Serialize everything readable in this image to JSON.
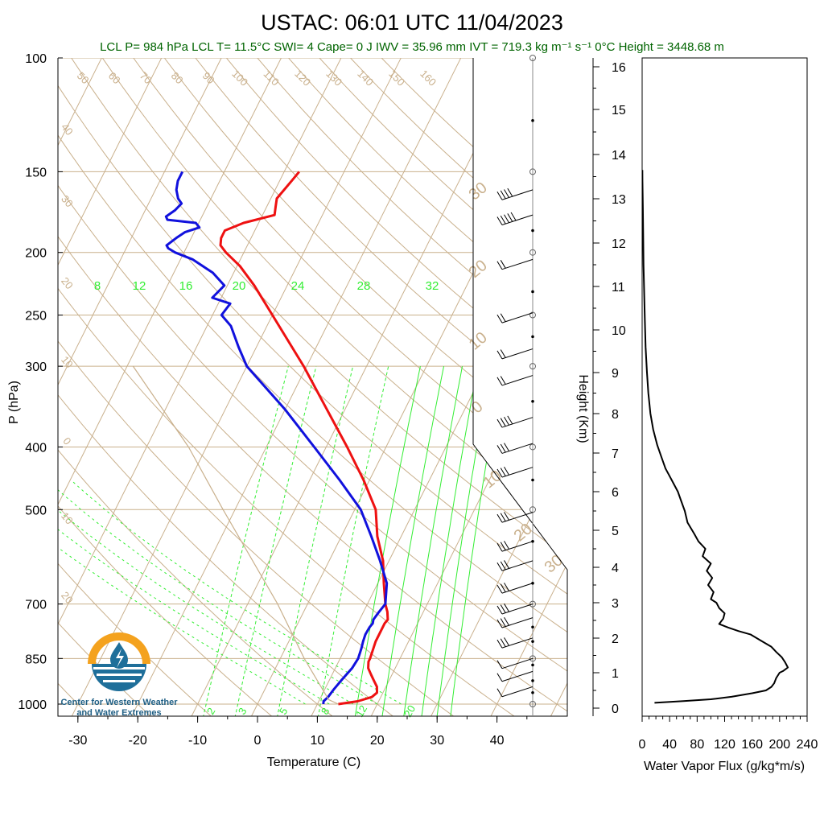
{
  "header": {
    "title": "USTAC: 06:01 UTC 11/04/2023",
    "stats": "LCL P= 984 hPa  LCL T= 11.5°C  SWI= 4  Cape= 0 J  IWV = 35.96 mm  IVT = 719.3 kg m⁻¹ s⁻¹  0°C Height = 3448.68 m"
  },
  "logo": {
    "line1": "Center for Western Weather",
    "line2": "and Water Extremes"
  },
  "colors": {
    "temperature": "#ee1111",
    "dewpoint": "#1111dd",
    "isotherm": "#c9b08c",
    "mixing_ratio": "#33ee33",
    "stats_text": "#006400",
    "logo_orange": "#f4a21e",
    "logo_blue": "#1f6f9a"
  },
  "chart_data": [
    {
      "type": "line",
      "subtype": "skew-t log-p sounding",
      "xlabel": "Temperature (C)",
      "ylabel": "P (hPa)",
      "x_ticks": [
        -30,
        -20,
        -10,
        0,
        10,
        20,
        30,
        40
      ],
      "y_ticks": [
        100,
        150,
        200,
        250,
        300,
        400,
        500,
        700,
        850,
        1000
      ],
      "ylim": [
        1000,
        100
      ],
      "y_scale": "log",
      "isotherm_labels": [
        {
          "t": 50,
          "label": "50"
        },
        {
          "t": 60,
          "label": "60"
        },
        {
          "t": 70,
          "label": "70"
        },
        {
          "t": 80,
          "label": "80"
        },
        {
          "t": 90,
          "label": "90"
        },
        {
          "t": 100,
          "label": "100"
        },
        {
          "t": 110,
          "label": "110"
        },
        {
          "t": 120,
          "label": "120"
        },
        {
          "t": 130,
          "label": "130"
        },
        {
          "t": 140,
          "label": "140"
        },
        {
          "t": 150,
          "label": "150"
        },
        {
          "t": 160,
          "label": "160"
        }
      ],
      "left_edge_labels": [
        {
          "p": 130,
          "label": "40"
        },
        {
          "p": 168,
          "label": "30"
        },
        {
          "p": 225,
          "label": "20"
        },
        {
          "p": 298,
          "label": "10"
        },
        {
          "p": 395,
          "label": "0"
        },
        {
          "p": 520,
          "label": "10"
        },
        {
          "p": 690,
          "label": "20"
        }
      ],
      "right_labels": [
        {
          "p": 163,
          "label": "30"
        },
        {
          "p": 215,
          "label": "20"
        },
        {
          "p": 278,
          "label": "10"
        },
        {
          "p": 352,
          "label": "0"
        },
        {
          "p": 455,
          "label": "10"
        },
        {
          "p": 550,
          "label": "20"
        },
        {
          "p": 615,
          "label": "30"
        }
      ],
      "mixing_ratio_upper": [
        "8",
        "12",
        "16",
        "20",
        "24",
        "28",
        "32"
      ],
      "mixing_ratio_lower": [
        "2",
        "3",
        "5",
        "8",
        "12",
        "20"
      ],
      "series": [
        {
          "name": "Temperature",
          "points": [
            [
              1000,
              13.5
            ],
            [
              990,
              16.5
            ],
            [
              975,
              18.5
            ],
            [
              960,
              19.0
            ],
            [
              940,
              18.5
            ],
            [
              920,
              17.5
            ],
            [
              900,
              16.5
            ],
            [
              880,
              15.5
            ],
            [
              860,
              15.0
            ],
            [
              850,
              15.0
            ],
            [
              800,
              14.5
            ],
            [
              750,
              14.5
            ],
            [
              740,
              14.7
            ],
            [
              720,
              14.0
            ],
            [
              700,
              13.0
            ],
            [
              650,
              11.0
            ],
            [
              600,
              9.0
            ],
            [
              550,
              6.0
            ],
            [
              500,
              3.5
            ],
            [
              450,
              -1.0
            ],
            [
              400,
              -6.5
            ],
            [
              350,
              -13.0
            ],
            [
              300,
              -20.5
            ],
            [
              250,
              -30.0
            ],
            [
              225,
              -35.5
            ],
            [
              210,
              -39.5
            ],
            [
              200,
              -43.0
            ],
            [
              195,
              -44.5
            ],
            [
              190,
              -45.0
            ],
            [
              185,
              -45.0
            ],
            [
              180,
              -42.5
            ],
            [
              175,
              -38.0
            ],
            [
              170,
              -38.5
            ],
            [
              165,
              -39.0
            ],
            [
              160,
              -38.5
            ],
            [
              155,
              -38.0
            ],
            [
              150,
              -37.5
            ]
          ]
        },
        {
          "name": "Dewpoint",
          "points": [
            [
              1000,
              11.0
            ],
            [
              990,
              10.8
            ],
            [
              975,
              11.2
            ],
            [
              950,
              11.5
            ],
            [
              920,
              12.0
            ],
            [
              880,
              12.8
            ],
            [
              850,
              13.0
            ],
            [
              820,
              12.7
            ],
            [
              800,
              12.4
            ],
            [
              780,
              12.2
            ],
            [
              760,
              12.3
            ],
            [
              750,
              12.5
            ],
            [
              740,
              12.3
            ],
            [
              720,
              12.6
            ],
            [
              700,
              13.0
            ],
            [
              650,
              11.5
            ],
            [
              600,
              8.5
            ],
            [
              550,
              5.0
            ],
            [
              500,
              1.0
            ],
            [
              450,
              -5.0
            ],
            [
              400,
              -12.0
            ],
            [
              350,
              -20.0
            ],
            [
              300,
              -30.0
            ],
            [
              280,
              -33.0
            ],
            [
              260,
              -36.0
            ],
            [
              250,
              -38.5
            ],
            [
              240,
              -38.0
            ],
            [
              235,
              -41.5
            ],
            [
              225,
              -40.5
            ],
            [
              215,
              -43.5
            ],
            [
              205,
              -48.0
            ],
            [
              200,
              -51.5
            ],
            [
              197,
              -53.0
            ],
            [
              195,
              -53.5
            ],
            [
              190,
              -52.5
            ],
            [
              186,
              -51.5
            ],
            [
              183,
              -49.5
            ],
            [
              180,
              -50.5
            ],
            [
              178,
              -55.5
            ],
            [
              176,
              -56.0
            ],
            [
              172,
              -55.0
            ],
            [
              168,
              -54.5
            ],
            [
              165,
              -55.5
            ],
            [
              160,
              -56.5
            ],
            [
              155,
              -57.0
            ],
            [
              150,
              -57.0
            ]
          ]
        },
        {
          "name": "Parcel",
          "points": [
            [
              1000,
              13.5
            ],
            [
              984,
              11.5
            ],
            [
              850,
              4.0
            ],
            [
              700,
              -5.0
            ],
            [
              500,
              -22.0
            ],
            [
              400,
              -33.0
            ],
            [
              300,
              -49.0
            ]
          ]
        }
      ],
      "wind_barbs": [
        {
          "p": 160,
          "knots": 40
        },
        {
          "p": 175,
          "knots": 50
        },
        {
          "p": 205,
          "knots": 15
        },
        {
          "p": 248,
          "knots": 15
        },
        {
          "p": 282,
          "knots": 15
        },
        {
          "p": 310,
          "knots": 15
        },
        {
          "p": 360,
          "knots": 35
        },
        {
          "p": 395,
          "knots": 30
        },
        {
          "p": 430,
          "knots": 30
        },
        {
          "p": 505,
          "knots": 30
        },
        {
          "p": 560,
          "knots": 30
        },
        {
          "p": 600,
          "knots": 30
        },
        {
          "p": 650,
          "knots": 30
        },
        {
          "p": 700,
          "knots": 30
        },
        {
          "p": 735,
          "knots": 30
        },
        {
          "p": 790,
          "knots": 30
        },
        {
          "p": 850,
          "knots": 10
        },
        {
          "p": 890,
          "knots": 10
        },
        {
          "p": 940,
          "knots": 10
        }
      ]
    },
    {
      "type": "line",
      "xlabel": "Water Vapor Flux (g/kg*m/s)",
      "ylabel": "Height (Km)",
      "x_ticks": [
        0,
        40,
        80,
        120,
        160,
        200,
        240
      ],
      "y_ticks": [
        0,
        1,
        2,
        3,
        4,
        5,
        6,
        7,
        8,
        9,
        10,
        11,
        12,
        13,
        14,
        15,
        16
      ],
      "xlim": [
        0,
        240
      ],
      "ylim": [
        0,
        16
      ],
      "series": [
        {
          "name": "Water Vapor Flux",
          "points": [
            [
              18,
              0.15
            ],
            [
              60,
              0.2
            ],
            [
              100,
              0.25
            ],
            [
              130,
              0.32
            ],
            [
              160,
              0.42
            ],
            [
              180,
              0.5
            ],
            [
              188,
              0.6
            ],
            [
              192,
              0.7
            ],
            [
              195,
              0.85
            ],
            [
              200,
              1.0
            ],
            [
              205,
              1.05
            ],
            [
              212,
              1.15
            ],
            [
              208,
              1.3
            ],
            [
              203,
              1.45
            ],
            [
              195,
              1.6
            ],
            [
              188,
              1.75
            ],
            [
              175,
              1.9
            ],
            [
              158,
              2.1
            ],
            [
              140,
              2.2
            ],
            [
              125,
              2.3
            ],
            [
              112,
              2.4
            ],
            [
              118,
              2.55
            ],
            [
              120,
              2.7
            ],
            [
              112,
              2.85
            ],
            [
              108,
              3.0
            ],
            [
              100,
              3.1
            ],
            [
              104,
              3.3
            ],
            [
              96,
              3.5
            ],
            [
              102,
              3.7
            ],
            [
              94,
              3.9
            ],
            [
              100,
              4.1
            ],
            [
              88,
              4.3
            ],
            [
              92,
              4.5
            ],
            [
              82,
              4.7
            ],
            [
              76,
              4.9
            ],
            [
              66,
              5.2
            ],
            [
              62,
              5.5
            ],
            [
              56,
              5.8
            ],
            [
              52,
              6.0
            ],
            [
              46,
              6.2
            ],
            [
              40,
              6.4
            ],
            [
              34,
              6.6
            ],
            [
              28,
              6.9
            ],
            [
              22,
              7.2
            ],
            [
              16,
              7.6
            ],
            [
              12,
              8.0
            ],
            [
              9,
              8.5
            ],
            [
              7,
              9.0
            ],
            [
              5,
              9.6
            ],
            [
              4,
              10.2
            ],
            [
              3,
              10.8
            ],
            [
              2,
              11.5
            ],
            [
              1.5,
              12.2
            ],
            [
              1,
              12.8
            ],
            [
              0.5,
              13.4
            ],
            [
              0.3,
              13.65
            ]
          ]
        }
      ]
    }
  ]
}
